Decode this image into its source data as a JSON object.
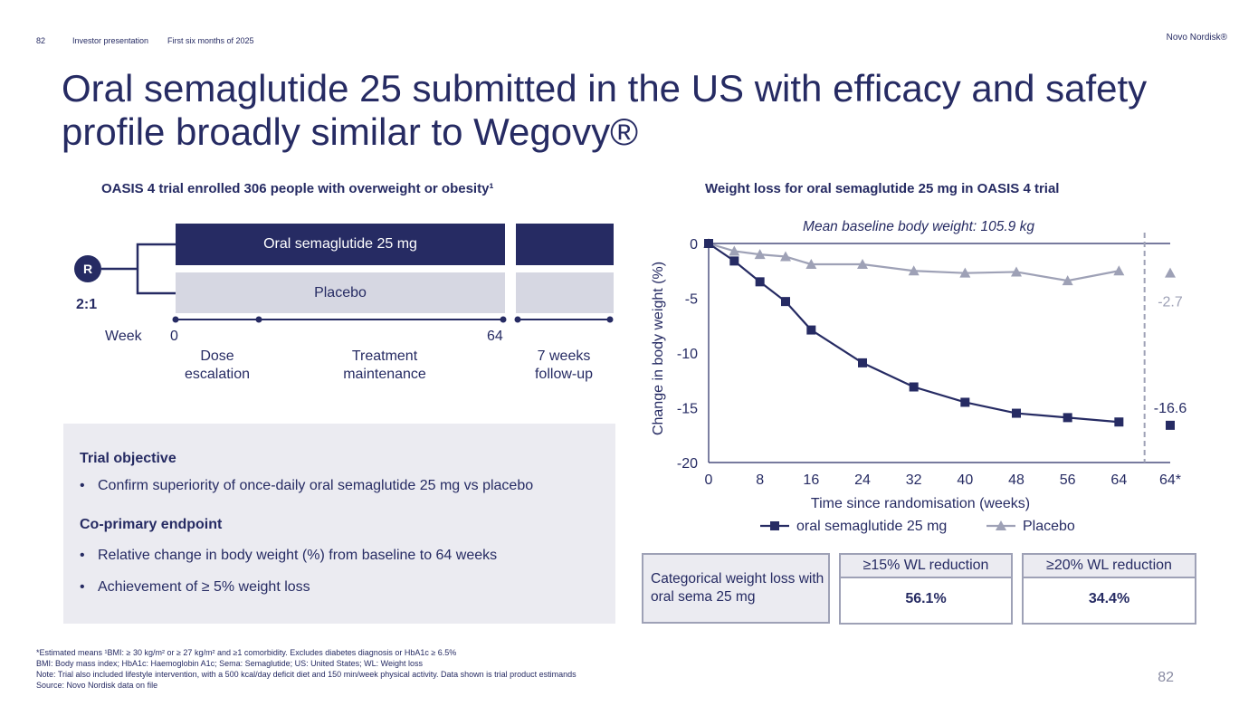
{
  "header": {
    "page_number": "82",
    "presentation": "Investor presentation",
    "period": "First six months of 2025",
    "brand": "Novo Nordisk®"
  },
  "title": "Oral semaglutide 25 submitted in the US with efficacy and safety profile broadly similar to Wegovy®",
  "trial_design": {
    "heading": "OASIS 4 trial enrolled 306 people with overweight or obesity¹",
    "randomisation_badge": "R",
    "ratio": "2:1",
    "arms": [
      "Oral semaglutide 25 mg",
      "Placebo"
    ],
    "week_label": "Week",
    "week_start": "0",
    "week_end": "64",
    "phases": [
      "Dose escalation",
      "Treatment maintenance",
      "7 weeks follow-up"
    ],
    "colors": {
      "active": "#262b63",
      "placebo": "#d6d7e2"
    }
  },
  "objectives": {
    "trial_objective_heading": "Trial objective",
    "trial_objective_items": [
      "Confirm superiority of once-daily oral semaglutide 25 mg vs placebo"
    ],
    "endpoint_heading": "Co-primary endpoint",
    "endpoint_items": [
      "Relative change in body weight (%) from baseline to 64 weeks",
      "Achievement of ≥ 5% weight loss"
    ]
  },
  "chart_heading": "Weight loss for oral semaglutide 25 mg in OASIS 4 trial",
  "chart_data": {
    "type": "line",
    "title": "Mean baseline body weight: 105.9 kg",
    "xlabel": "Time since randomisation (weeks)",
    "ylabel": "Change in body weight (%)",
    "x_ticks": [
      "0",
      "8",
      "16",
      "24",
      "32",
      "40",
      "48",
      "56",
      "64",
      "64*"
    ],
    "xlim": [
      0,
      72
    ],
    "ylim": [
      -20,
      0
    ],
    "y_ticks": [
      0,
      -5,
      -10,
      -15,
      -20
    ],
    "grid": false,
    "legend_position": "bottom",
    "series": [
      {
        "name": "oral semaglutide 25 mg",
        "color": "#262b63",
        "marker": "square",
        "x": [
          0,
          4,
          8,
          12,
          16,
          24,
          32,
          40,
          48,
          56,
          64
        ],
        "y": [
          0,
          -1.6,
          -3.5,
          -5.3,
          -7.9,
          -10.9,
          -13.1,
          -14.5,
          -15.5,
          -15.9,
          -16.3
        ],
        "final_x": 72,
        "final_value": -16.6,
        "final_label": "-16.6"
      },
      {
        "name": "Placebo",
        "color": "#9ea1b6",
        "marker": "triangle",
        "x": [
          0,
          4,
          8,
          12,
          16,
          24,
          32,
          40,
          48,
          56,
          64
        ],
        "y": [
          0,
          -0.7,
          -1.0,
          -1.2,
          -1.9,
          -1.9,
          -2.5,
          -2.7,
          -2.6,
          -3.4,
          -2.5
        ],
        "final_x": 72,
        "final_value": -2.7,
        "final_label": "-2.7"
      }
    ]
  },
  "categorical": {
    "label": "Categorical weight loss with oral sema 25 mg",
    "items": [
      {
        "header": "≥15% WL reduction",
        "value": "56.1%"
      },
      {
        "header": "≥20% WL reduction",
        "value": "34.4%"
      }
    ]
  },
  "footnotes": [
    "*Estimated means ¹BMI: ≥ 30 kg/m² or ≥ 27 kg/m² and ≥1 comorbidity. Excludes diabetes diagnosis or HbA1c ≥ 6.5%",
    "BMI: Body mass index; HbA1c: Haemoglobin A1c; Sema: Semaglutide; US: United States; WL: Weight loss",
    "Note: Trial also included lifestyle intervention, with a 500 kcal/day deficit diet and 150 min/week physical activity. Data shown is trial product estimands",
    "Source: Novo Nordisk data on file"
  ],
  "slide_number": "82"
}
